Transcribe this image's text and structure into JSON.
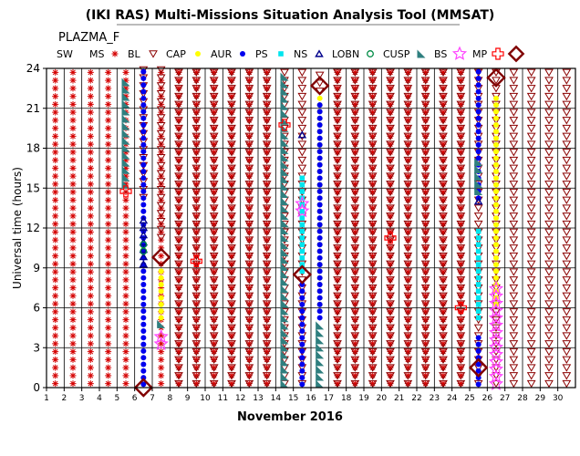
{
  "chart_data": {
    "type": "scatter",
    "title": "(IKI RAS) Multi-Missions Situation Analysis Tool (MMSAT)",
    "subtitle": "PLAZMA_F",
    "xlabel": "November 2016",
    "ylabel": "Universal time (hours)",
    "xlim": [
      1,
      30
    ],
    "ylim": [
      0,
      24
    ],
    "x_ticks": [
      "1",
      "2",
      "3",
      "4",
      "5",
      "6",
      "7",
      "8",
      "9",
      "10",
      "11",
      "12",
      "13",
      "14",
      "15",
      "16",
      "17",
      "18",
      "19",
      "20",
      "21",
      "22",
      "23",
      "24",
      "25",
      "26",
      "27",
      "28",
      "29",
      "30"
    ],
    "y_ticks": [
      "0",
      "3",
      "6",
      "9",
      "12",
      "15",
      "18",
      "21",
      "24"
    ],
    "grid": true,
    "legend_position": "top",
    "legend": [
      {
        "label": "SW",
        "marker": "none",
        "color": "#000000"
      },
      {
        "label": "MS",
        "marker": "asterisk",
        "color": "#d40000"
      },
      {
        "label": "BL",
        "marker": "triangle-down-open",
        "color": "#8b0000"
      },
      {
        "label": "CAP",
        "marker": "dot",
        "color": "#ffff00"
      },
      {
        "label": "AUR",
        "marker": "dot",
        "color": "#0000ee"
      },
      {
        "label": "PS",
        "marker": "square",
        "color": "#00e5ee"
      },
      {
        "label": "NS",
        "marker": "triangle-up-open",
        "color": "#00008b"
      },
      {
        "label": "LOBN",
        "marker": "circle-open",
        "color": "#008b45"
      },
      {
        "label": "CUSP",
        "marker": "flag",
        "color": "#2f7f7f"
      },
      {
        "label": "BS",
        "marker": "star-open",
        "color": "#ff44ff"
      },
      {
        "label": "MP",
        "marker": "plus-open",
        "color": "#ff0000"
      },
      {
        "label": "",
        "marker": "diamond-open",
        "color": "#800000"
      }
    ],
    "series": [
      {
        "name": "MS",
        "ranges": [
          {
            "x": 1,
            "y": [
              0,
              24
            ]
          },
          {
            "x": 2,
            "y": [
              0,
              24
            ]
          },
          {
            "x": 3,
            "y": [
              0,
              24
            ]
          },
          {
            "x": 4,
            "y": [
              0,
              24
            ]
          },
          {
            "x": 5,
            "y": [
              0,
              24
            ]
          },
          {
            "x": 7,
            "y": [
              0,
              24
            ]
          },
          {
            "x": 8,
            "y": [
              0,
              24
            ]
          },
          {
            "x": 9,
            "y": [
              0,
              24
            ]
          },
          {
            "x": 10,
            "y": [
              0,
              24
            ]
          },
          {
            "x": 11,
            "y": [
              0,
              24
            ]
          },
          {
            "x": 12,
            "y": [
              0,
              24
            ]
          },
          {
            "x": 13,
            "y": [
              0,
              24
            ]
          },
          {
            "x": 17,
            "y": [
              0,
              24
            ]
          },
          {
            "x": 18,
            "y": [
              0,
              24
            ]
          },
          {
            "x": 19,
            "y": [
              0,
              24
            ]
          },
          {
            "x": 20,
            "y": [
              0,
              24
            ]
          },
          {
            "x": 21,
            "y": [
              0,
              24
            ]
          },
          {
            "x": 22,
            "y": [
              0,
              24
            ]
          },
          {
            "x": 23,
            "y": [
              0,
              24
            ]
          },
          {
            "x": 24,
            "y": [
              0,
              24
            ]
          }
        ]
      },
      {
        "name": "BL",
        "ranges": [
          {
            "x": 6,
            "y": [
              14,
              24
            ]
          },
          {
            "x": 7,
            "y": [
              11,
              24
            ]
          },
          {
            "x": 8,
            "y": [
              0,
              24
            ]
          },
          {
            "x": 9,
            "y": [
              0,
              24
            ]
          },
          {
            "x": 10,
            "y": [
              0,
              24
            ]
          },
          {
            "x": 11,
            "y": [
              0,
              24
            ]
          },
          {
            "x": 12,
            "y": [
              0,
              24
            ]
          },
          {
            "x": 13,
            "y": [
              0,
              24
            ]
          },
          {
            "x": 14,
            "y": [
              0,
              24
            ]
          },
          {
            "x": 15,
            "y": [
              0,
              24
            ]
          },
          {
            "x": 16,
            "y": [
              22,
              24
            ]
          },
          {
            "x": 17,
            "y": [
              0,
              24
            ]
          },
          {
            "x": 18,
            "y": [
              0,
              24
            ]
          },
          {
            "x": 19,
            "y": [
              0,
              24
            ]
          },
          {
            "x": 20,
            "y": [
              0,
              24
            ]
          },
          {
            "x": 21,
            "y": [
              0,
              24
            ]
          },
          {
            "x": 22,
            "y": [
              0,
              24
            ]
          },
          {
            "x": 23,
            "y": [
              0,
              24
            ]
          },
          {
            "x": 24,
            "y": [
              0,
              24
            ]
          },
          {
            "x": 25,
            "y": [
              0,
              24
            ]
          },
          {
            "x": 26,
            "y": [
              0,
              24
            ]
          },
          {
            "x": 27,
            "y": [
              0,
              24
            ]
          },
          {
            "x": 28,
            "y": [
              0,
              24
            ]
          },
          {
            "x": 29,
            "y": [
              0,
              24
            ]
          },
          {
            "x": 30,
            "y": [
              0,
              24
            ]
          }
        ]
      },
      {
        "name": "CAP",
        "ranges": [
          {
            "x": 7,
            "y": [
              5,
              9
            ]
          },
          {
            "x": 16,
            "y": [
              6,
              22
            ]
          },
          {
            "x": 26,
            "y": [
              6,
              22
            ]
          }
        ]
      },
      {
        "name": "AUR",
        "ranges": [
          {
            "x": 6,
            "y": [
              0,
              24
            ]
          },
          {
            "x": 15,
            "y": [
              0,
              8
            ]
          },
          {
            "x": 16,
            "y": [
              5,
              21.5
            ]
          },
          {
            "x": 25,
            "y": [
              14,
              24
            ]
          },
          {
            "x": 25,
            "y": [
              0,
              4
            ]
          }
        ]
      },
      {
        "name": "PS",
        "ranges": [
          {
            "x": 15,
            "y": [
              8.5,
              16
            ]
          },
          {
            "x": 25,
            "y": [
              5,
              12
            ]
          }
        ]
      },
      {
        "name": "NS",
        "ranges": [
          {
            "x": 6,
            "y": [
              9,
              13
            ]
          },
          {
            "x": 15,
            "y": [
              19,
              19
            ]
          },
          {
            "x": 25,
            "y": [
              14,
              14
            ]
          }
        ]
      },
      {
        "name": "LOBN",
        "ranges": [
          {
            "x": 6,
            "y": [
              10,
              11
            ]
          }
        ]
      },
      {
        "name": "CUSP",
        "ranges": [
          {
            "x": 5,
            "y": [
              15,
              23
            ]
          },
          {
            "x": 7,
            "y": [
              4.5,
              5
            ]
          },
          {
            "x": 14,
            "y": [
              0,
              23.5
            ]
          },
          {
            "x": 16,
            "y": [
              0,
              5
            ]
          },
          {
            "x": 25,
            "y": [
              14.5,
              17
            ]
          }
        ]
      },
      {
        "name": "BS",
        "ranges": [
          {
            "x": 7,
            "y": [
              3,
              4
            ]
          },
          {
            "x": 15,
            "y": [
              13,
              14
            ]
          },
          {
            "x": 26,
            "y": [
              0,
              7.5
            ]
          }
        ]
      },
      {
        "name": "MP",
        "ranges": [
          {
            "x": 5,
            "y": [
              14.5,
              15
            ]
          },
          {
            "x": 9,
            "y": [
              9.5,
              9.5
            ]
          },
          {
            "x": 14,
            "y": [
              19.5,
              20
            ]
          },
          {
            "x": 20,
            "y": [
              11,
              11.5
            ]
          },
          {
            "x": 24,
            "y": [
              6,
              6
            ]
          }
        ]
      },
      {
        "name": "",
        "marker": "diamond-open",
        "points": [
          {
            "x": 6,
            "y": 0
          },
          {
            "x": 7,
            "y": 9.8
          },
          {
            "x": 15,
            "y": 8.5
          },
          {
            "x": 16,
            "y": 22.7
          },
          {
            "x": 25,
            "y": 1.5
          },
          {
            "x": 26,
            "y": 23.3
          }
        ]
      }
    ]
  }
}
